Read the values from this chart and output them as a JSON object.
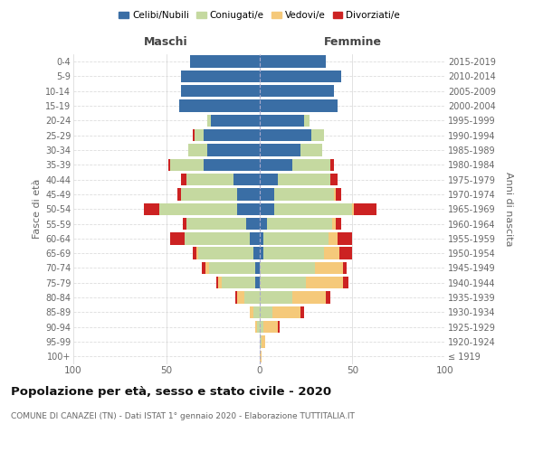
{
  "age_groups": [
    "100+",
    "95-99",
    "90-94",
    "85-89",
    "80-84",
    "75-79",
    "70-74",
    "65-69",
    "60-64",
    "55-59",
    "50-54",
    "45-49",
    "40-44",
    "35-39",
    "30-34",
    "25-29",
    "20-24",
    "15-19",
    "10-14",
    "5-9",
    "0-4"
  ],
  "birth_years": [
    "≤ 1919",
    "1920-1924",
    "1925-1929",
    "1930-1934",
    "1935-1939",
    "1940-1944",
    "1945-1949",
    "1950-1954",
    "1955-1959",
    "1960-1964",
    "1965-1969",
    "1970-1974",
    "1975-1979",
    "1980-1984",
    "1985-1989",
    "1990-1994",
    "1995-1999",
    "2000-2004",
    "2005-2009",
    "2010-2014",
    "2015-2019"
  ],
  "colors": {
    "celibi": "#3a6ea5",
    "coniugati": "#c5d9a0",
    "vedovi": "#f5c97a",
    "divorziati": "#cc2222"
  },
  "maschi": {
    "celibi": [
      0,
      0,
      0,
      0,
      0,
      2,
      2,
      3,
      5,
      7,
      12,
      12,
      14,
      30,
      28,
      30,
      26,
      43,
      42,
      42,
      37
    ],
    "coniugati": [
      0,
      0,
      1,
      3,
      8,
      18,
      25,
      30,
      35,
      32,
      42,
      30,
      25,
      18,
      10,
      5,
      2,
      0,
      0,
      0,
      0
    ],
    "vedovi": [
      0,
      0,
      1,
      2,
      4,
      2,
      2,
      1,
      0,
      0,
      0,
      0,
      0,
      0,
      0,
      0,
      0,
      0,
      0,
      0,
      0
    ],
    "divorziati": [
      0,
      0,
      0,
      0,
      1,
      1,
      2,
      2,
      8,
      2,
      8,
      2,
      3,
      1,
      0,
      1,
      0,
      0,
      0,
      0,
      0
    ]
  },
  "femmine": {
    "celibi": [
      0,
      0,
      0,
      0,
      0,
      0,
      0,
      2,
      2,
      4,
      8,
      8,
      10,
      18,
      22,
      28,
      24,
      42,
      40,
      44,
      36
    ],
    "coniugati": [
      0,
      1,
      2,
      7,
      18,
      25,
      30,
      33,
      35,
      35,
      42,
      32,
      28,
      20,
      12,
      7,
      3,
      0,
      0,
      0,
      0
    ],
    "vedovi": [
      1,
      2,
      8,
      15,
      18,
      20,
      15,
      8,
      5,
      2,
      1,
      1,
      0,
      0,
      0,
      0,
      0,
      0,
      0,
      0,
      0
    ],
    "divorziati": [
      0,
      0,
      1,
      2,
      2,
      3,
      2,
      7,
      8,
      3,
      12,
      3,
      4,
      2,
      0,
      0,
      0,
      0,
      0,
      0,
      0
    ]
  },
  "xlim": 100,
  "title": "Popolazione per età, sesso e stato civile - 2020",
  "subtitle": "COMUNE DI CANAZEI (TN) - Dati ISTAT 1° gennaio 2020 - Elaborazione TUTTITALIA.IT",
  "ylabel_left": "Fasce di età",
  "ylabel_right": "Anni di nascita",
  "xlabel_maschi": "Maschi",
  "xlabel_femmine": "Femmine",
  "legend_labels": [
    "Celibi/Nubili",
    "Coniugati/e",
    "Vedovi/e",
    "Divorziati/e"
  ],
  "background_color": "#ffffff",
  "grid_color": "#dddddd"
}
